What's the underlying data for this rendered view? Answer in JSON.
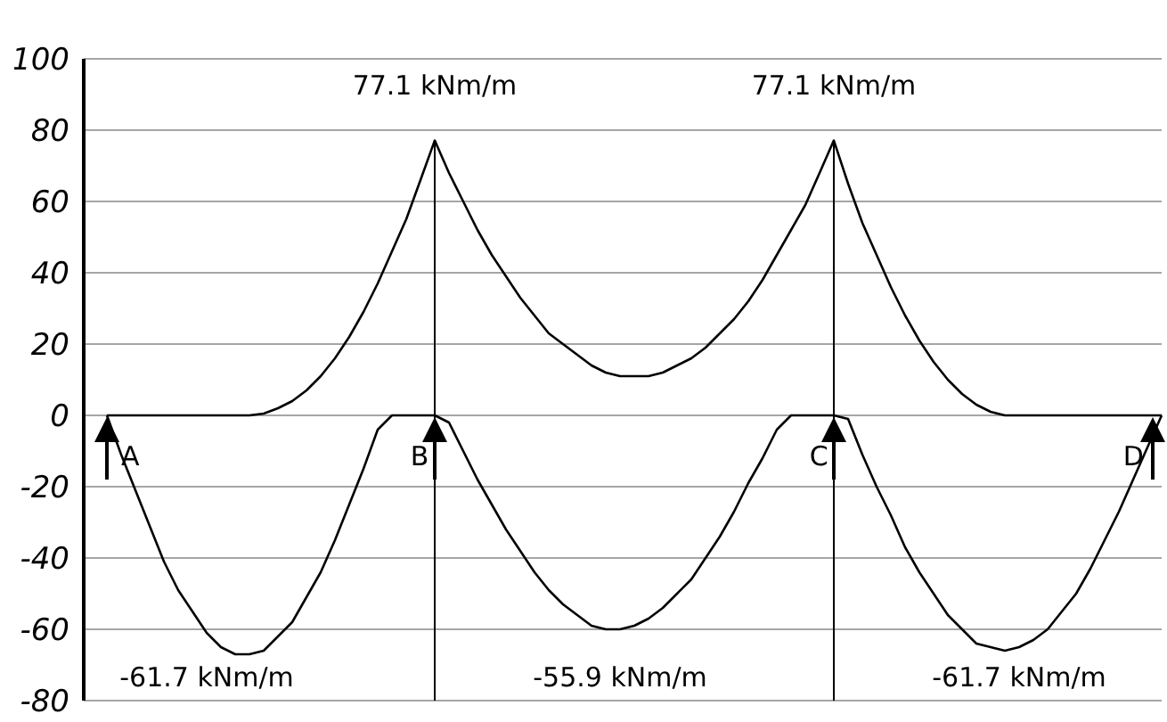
{
  "chart_data": {
    "type": "line",
    "categories": [
      null,
      null,
      null,
      null,
      null,
      null,
      null,
      null,
      null,
      null,
      null,
      null,
      null,
      null,
      null,
      null,
      null,
      null,
      null,
      null,
      null,
      null,
      null,
      null,
      null,
      null,
      null,
      null,
      null,
      null,
      null,
      null,
      null,
      null,
      null,
      null,
      null,
      null,
      null,
      null,
      null,
      null,
      null,
      null,
      null,
      null,
      null,
      null,
      null,
      null,
      null,
      null,
      null,
      null,
      null,
      null,
      null,
      null,
      null,
      null,
      null,
      null,
      null,
      null,
      null,
      null,
      null,
      null,
      null,
      null,
      null,
      null,
      null,
      null,
      null
    ],
    "series": [
      {
        "color": "#000000",
        "values": [
          0,
          0,
          0,
          0,
          0,
          0,
          0,
          0,
          0,
          0,
          0,
          0.5,
          2,
          4,
          7,
          11,
          16,
          22,
          29,
          37,
          46,
          55,
          66,
          77.1,
          68,
          60,
          52,
          45,
          39,
          33,
          28,
          23,
          20,
          17,
          14,
          12,
          11,
          11,
          11,
          12,
          14,
          16,
          19,
          23,
          27,
          32,
          38,
          45,
          52,
          59,
          68,
          77.1,
          65,
          54,
          45,
          36,
          28,
          21,
          15,
          10,
          6,
          3,
          1,
          0,
          0,
          0,
          0,
          0,
          0,
          0,
          0,
          0,
          0,
          0,
          0
        ]
      },
      {
        "color": "#000000",
        "values": [
          0,
          -11,
          -21,
          -31,
          -41,
          -49,
          -55,
          -61,
          -65,
          -67,
          -67,
          -66,
          -62,
          -58,
          -51,
          -44,
          -35,
          -25,
          -15,
          -4,
          0,
          0,
          0,
          0,
          -2,
          -10,
          -18,
          -25,
          -32,
          -38,
          -44,
          -49,
          -53,
          -56,
          -59,
          -60,
          -60,
          -59,
          -57,
          -54,
          -50,
          -46,
          -40,
          -34,
          -27,
          -19,
          -12,
          -4,
          0,
          0,
          0,
          0,
          -1,
          -11,
          -20,
          -28,
          -37,
          -44,
          -50,
          -56,
          -60,
          -64,
          -65,
          -66,
          -65,
          -63,
          -60,
          -55,
          -50,
          -43,
          -35,
          -27,
          -18,
          -9,
          0
        ]
      }
    ],
    "ylim": [
      -80,
      100
    ],
    "yticks": [
      -80,
      -60,
      -40,
      -20,
      0,
      20,
      40,
      60,
      80,
      100
    ],
    "grid": "y",
    "legend": false,
    "tick_labels": "y",
    "marker": "none",
    "line_style": "solid",
    "annotations": [
      "77.1 kNm/m",
      "77.1 kNm/m",
      "-61.7 kNm/m",
      "-55.9 kNm/m",
      "-61.7 kNm/m",
      "A",
      "B",
      "C",
      "D"
    ]
  }
}
